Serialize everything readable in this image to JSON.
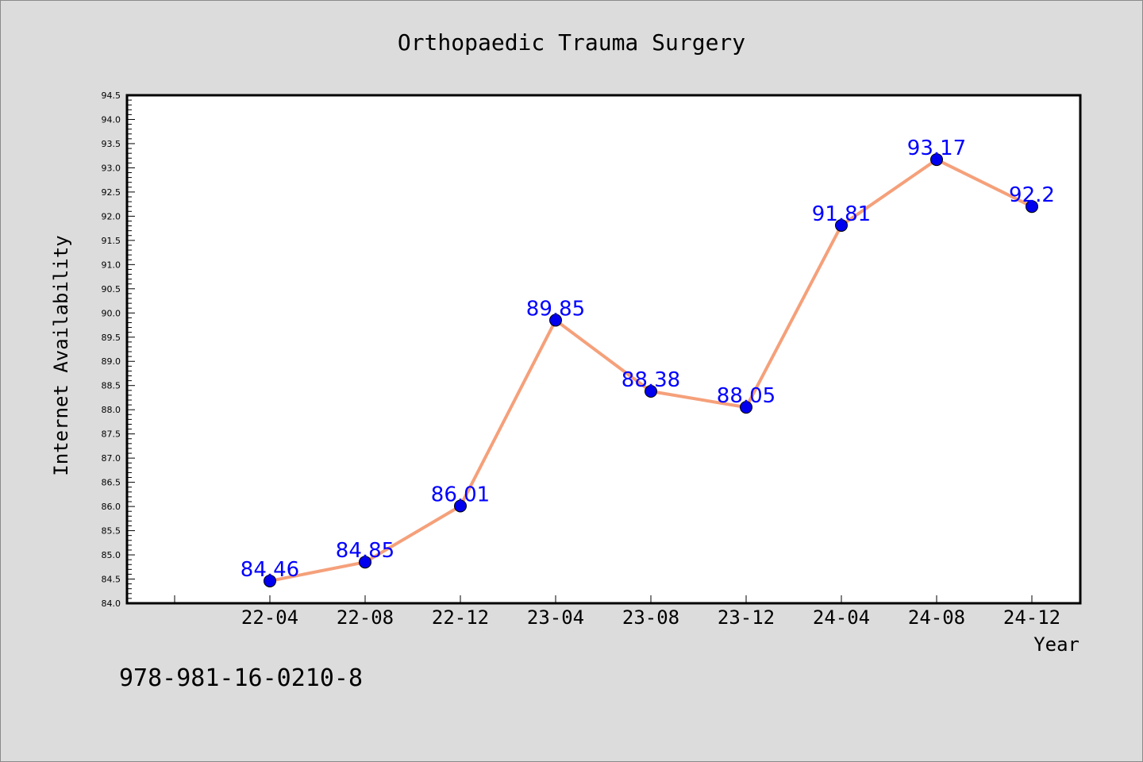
{
  "chart_data": {
    "type": "line",
    "title": "Orthopaedic Trauma Surgery",
    "xlabel": "Year",
    "ylabel": "Internet Availability",
    "categories": [
      "22-04",
      "22-08",
      "22-12",
      "23-04",
      "23-08",
      "23-12",
      "24-04",
      "24-08",
      "24-12"
    ],
    "values": [
      84.46,
      84.85,
      86.01,
      89.85,
      88.38,
      88.05,
      91.81,
      93.17,
      92.2
    ],
    "data_labels": [
      "84.46",
      "84.85",
      "86.01",
      "89.85",
      "88.38",
      "88.05",
      "91.81",
      "93.17",
      "92.2"
    ],
    "ylim": [
      84.0,
      94.5
    ],
    "y_ticks": [
      "84.0",
      "84.5",
      "85.0",
      "85.5",
      "86.0",
      "86.5",
      "87.0",
      "87.5",
      "88.0",
      "88.5",
      "89.0",
      "89.5",
      "90.0",
      "90.5",
      "91.0",
      "91.5",
      "92.0",
      "92.5",
      "93.0",
      "93.5",
      "94.0",
      "94.5"
    ],
    "grid": false,
    "legend": "none",
    "colors": {
      "line": "#f5a07a",
      "marker": "#0000ee",
      "data_label": "#0000ff",
      "background": "#dcdcdc",
      "plot_background": "#ffffff"
    }
  },
  "footer_text": "978-981-16-0210-8"
}
